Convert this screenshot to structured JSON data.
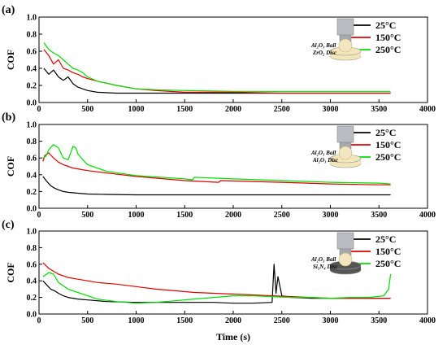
{
  "colors": {
    "25": "#000000",
    "150": "#e00000",
    "250": "#00e000"
  },
  "xlabel": "Time (s)",
  "chart_data": [
    {
      "type": "line",
      "panel": "(a)",
      "ylabel": "COF",
      "xlim": [
        0,
        4000
      ],
      "ylim": [
        0.0,
        1.0
      ],
      "xticks": [
        0,
        500,
        1000,
        1500,
        2000,
        2500,
        3000,
        3500,
        4000
      ],
      "yticks": [
        0.0,
        0.2,
        0.4,
        0.6,
        0.8,
        1.0
      ],
      "legend_position": "top-right",
      "inset_labels": [
        "Al₂O₃ Ball",
        "ZrO₂ Disc"
      ],
      "series": [
        {
          "name": "25°C",
          "color": "#000000",
          "x": [
            50,
            100,
            150,
            200,
            250,
            300,
            350,
            400,
            450,
            500,
            600,
            800,
            1000,
            1500,
            2000,
            2500,
            3000,
            3500,
            3620
          ],
          "y": [
            0.4,
            0.33,
            0.38,
            0.3,
            0.26,
            0.3,
            0.22,
            0.18,
            0.16,
            0.14,
            0.12,
            0.11,
            0.11,
            0.11,
            0.11,
            0.11,
            0.11,
            0.11,
            0.11
          ]
        },
        {
          "name": "150°C",
          "color": "#e00000",
          "x": [
            50,
            100,
            150,
            200,
            250,
            300,
            350,
            400,
            450,
            500,
            600,
            800,
            1000,
            1200,
            1500,
            2000,
            2500,
            3000,
            3500,
            3620
          ],
          "y": [
            0.62,
            0.55,
            0.45,
            0.5,
            0.4,
            0.38,
            0.35,
            0.33,
            0.3,
            0.28,
            0.25,
            0.2,
            0.16,
            0.14,
            0.12,
            0.12,
            0.11,
            0.11,
            0.11,
            0.11
          ]
        },
        {
          "name": "250°C",
          "color": "#00e000",
          "x": [
            50,
            100,
            150,
            200,
            250,
            300,
            350,
            400,
            450,
            500,
            600,
            800,
            1000,
            1200,
            1500,
            2000,
            2500,
            3000,
            3500,
            3620
          ],
          "y": [
            0.7,
            0.62,
            0.58,
            0.55,
            0.5,
            0.45,
            0.4,
            0.38,
            0.35,
            0.3,
            0.25,
            0.2,
            0.16,
            0.15,
            0.14,
            0.13,
            0.13,
            0.13,
            0.13,
            0.13
          ]
        }
      ]
    },
    {
      "type": "line",
      "panel": "(b)",
      "ylabel": "COF",
      "xlim": [
        0,
        4000
      ],
      "ylim": [
        0.0,
        1.0
      ],
      "xticks": [
        0,
        500,
        1000,
        1500,
        2000,
        2500,
        3000,
        3500,
        4000
      ],
      "yticks": [
        0.0,
        0.2,
        0.4,
        0.6,
        0.8,
        1.0
      ],
      "legend_position": "top-right",
      "inset_labels": [
        "Al₂O₃ Ball",
        "Al₂O₃ Disc"
      ],
      "series": [
        {
          "name": "25°C",
          "color": "#000000",
          "x": [
            40,
            80,
            120,
            160,
            200,
            250,
            300,
            400,
            500,
            700,
            1000,
            1500,
            2000,
            2500,
            3000,
            3500,
            3620
          ],
          "y": [
            0.38,
            0.32,
            0.27,
            0.24,
            0.22,
            0.2,
            0.19,
            0.18,
            0.17,
            0.165,
            0.16,
            0.16,
            0.16,
            0.16,
            0.16,
            0.16,
            0.16
          ]
        },
        {
          "name": "150°C",
          "color": "#e00000",
          "x": [
            40,
            60,
            100,
            150,
            200,
            250,
            300,
            350,
            400,
            500,
            700,
            1000,
            1500,
            1850,
            1870,
            2500,
            3000,
            3500,
            3620
          ],
          "y": [
            0.56,
            0.63,
            0.66,
            0.6,
            0.55,
            0.52,
            0.5,
            0.48,
            0.47,
            0.45,
            0.42,
            0.38,
            0.33,
            0.31,
            0.33,
            0.31,
            0.29,
            0.28,
            0.28
          ]
        },
        {
          "name": "250°C",
          "color": "#00e000",
          "x": [
            40,
            70,
            100,
            150,
            200,
            250,
            300,
            350,
            380,
            400,
            450,
            500,
            700,
            1000,
            1500,
            1580,
            1600,
            2000,
            2500,
            3000,
            3500,
            3620
          ],
          "y": [
            0.6,
            0.62,
            0.7,
            0.76,
            0.72,
            0.6,
            0.58,
            0.74,
            0.72,
            0.65,
            0.58,
            0.52,
            0.44,
            0.39,
            0.35,
            0.34,
            0.37,
            0.35,
            0.33,
            0.31,
            0.3,
            0.29
          ]
        }
      ]
    },
    {
      "type": "line",
      "panel": "(c)",
      "ylabel": "COF",
      "xlim": [
        0,
        4000
      ],
      "ylim": [
        0.0,
        1.0
      ],
      "xticks": [
        0,
        500,
        1000,
        1500,
        2000,
        2500,
        3000,
        3500,
        4000
      ],
      "yticks": [
        0.0,
        0.2,
        0.4,
        0.6,
        0.8,
        1.0
      ],
      "legend_position": "top-right",
      "inset_labels": [
        "Al₂O₃ Ball",
        "Si₃N₄ Disc"
      ],
      "series": [
        {
          "name": "25°C",
          "color": "#000000",
          "x": [
            40,
            80,
            120,
            160,
            200,
            250,
            300,
            400,
            500,
            700,
            1000,
            1300,
            1500,
            1800,
            2000,
            2200,
            2400,
            2420,
            2440,
            2460,
            2500,
            2600,
            2800,
            3000,
            3200,
            3400,
            3600,
            3620
          ],
          "y": [
            0.4,
            0.35,
            0.3,
            0.28,
            0.25,
            0.22,
            0.2,
            0.18,
            0.17,
            0.15,
            0.14,
            0.14,
            0.14,
            0.14,
            0.13,
            0.13,
            0.14,
            0.6,
            0.25,
            0.45,
            0.22,
            0.2,
            0.19,
            0.19,
            0.19,
            0.19,
            0.19,
            0.19
          ]
        },
        {
          "name": "150°C",
          "color": "#e00000",
          "x": [
            40,
            100,
            200,
            300,
            400,
            500,
            600,
            700,
            800,
            1000,
            1200,
            1400,
            1600,
            1800,
            2000,
            2200,
            2400,
            2600,
            2800,
            3000,
            3200,
            3400,
            3620
          ],
          "y": [
            0.62,
            0.55,
            0.48,
            0.44,
            0.42,
            0.4,
            0.38,
            0.37,
            0.36,
            0.33,
            0.3,
            0.28,
            0.26,
            0.25,
            0.24,
            0.23,
            0.22,
            0.21,
            0.2,
            0.19,
            0.19,
            0.19,
            0.19
          ]
        },
        {
          "name": "250°C",
          "color": "#00e000",
          "x": [
            40,
            100,
            150,
            200,
            300,
            400,
            500,
            600,
            800,
            1000,
            1200,
            1400,
            1600,
            1800,
            2000,
            2200,
            2400,
            2600,
            2800,
            3000,
            3200,
            3400,
            3550,
            3600,
            3620
          ],
          "y": [
            0.45,
            0.5,
            0.48,
            0.38,
            0.3,
            0.26,
            0.22,
            0.18,
            0.15,
            0.13,
            0.14,
            0.16,
            0.18,
            0.2,
            0.22,
            0.22,
            0.21,
            0.2,
            0.2,
            0.19,
            0.2,
            0.2,
            0.22,
            0.3,
            0.48
          ]
        }
      ]
    }
  ]
}
